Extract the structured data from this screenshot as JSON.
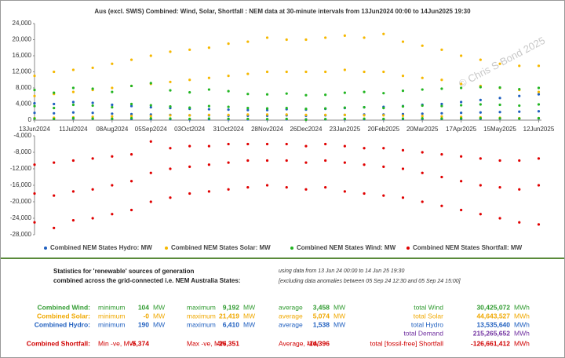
{
  "chart_data": [
    {
      "type": "scatter",
      "title": "Aus (excl. SWIS) Combined: Wind, Solar, Shortfall : NEM data at 30-minute intervals from 13Jun2024 00:00 to 14Jun2025 19:30",
      "watermark": "© Chris S Bond  2025",
      "xlim": [
        "2024-06-13",
        "2025-06-14"
      ],
      "xticks": [
        {
          "value": "2024-06-13",
          "label": "13Jun2024"
        },
        {
          "value": "2024-07-11",
          "label": "11Jul2024"
        },
        {
          "value": "2024-08-08",
          "label": "08Aug2024"
        },
        {
          "value": "2024-09-05",
          "label": "05Sep2024"
        },
        {
          "value": "2024-10-03",
          "label": "03Oct2024"
        },
        {
          "value": "2024-10-31",
          "label": "31Oct2024"
        },
        {
          "value": "2024-11-28",
          "label": "28Nov2024"
        },
        {
          "value": "2024-12-26",
          "label": "26Dec2024"
        },
        {
          "value": "2025-01-23",
          "label": "23Jan2025"
        },
        {
          "value": "2025-02-20",
          "label": "20Feb2025"
        },
        {
          "value": "2025-03-20",
          "label": "20Mar2025"
        },
        {
          "value": "2025-04-17",
          "label": "17Apr2025"
        },
        {
          "value": "2025-05-15",
          "label": "15May2025"
        },
        {
          "value": "2025-06-12",
          "label": "12Jun2025"
        }
      ],
      "ylim": [
        0,
        24000
      ],
      "yticks": [
        0,
        {
          "value": 4000,
          "label": "4,000"
        },
        {
          "value": 8000,
          "label": "8,000"
        },
        {
          "value": 12000,
          "label": "12,000"
        },
        {
          "value": 16000,
          "label": "16,000"
        },
        {
          "value": 20000,
          "label": "20,000"
        },
        {
          "value": 24000,
          "label": "24,000"
        }
      ],
      "x": [
        "2024-06-13",
        "2024-06-13",
        "2024-06-13",
        "2024-06-27",
        "2024-06-27",
        "2024-06-27",
        "2024-07-11",
        "2024-07-11",
        "2024-07-11",
        "2024-07-25",
        "2024-07-25",
        "2024-07-25",
        "2024-08-08",
        "2024-08-08",
        "2024-08-08",
        "2024-08-22",
        "2024-08-22",
        "2024-08-22",
        "2024-09-05",
        "2024-09-05",
        "2024-09-05",
        "2024-09-19",
        "2024-09-19",
        "2024-09-19",
        "2024-10-03",
        "2024-10-03",
        "2024-10-03",
        "2024-10-17",
        "2024-10-17",
        "2024-10-17",
        "2024-10-31",
        "2024-10-31",
        "2024-10-31",
        "2024-11-14",
        "2024-11-14",
        "2024-11-14",
        "2024-11-28",
        "2024-11-28",
        "2024-11-28",
        "2024-12-12",
        "2024-12-12",
        "2024-12-12",
        "2024-12-26",
        "2024-12-26",
        "2024-12-26",
        "2025-01-09",
        "2025-01-09",
        "2025-01-09",
        "2025-01-23",
        "2025-01-23",
        "2025-01-23",
        "2025-02-06",
        "2025-02-06",
        "2025-02-06",
        "2025-02-20",
        "2025-02-20",
        "2025-02-20",
        "2025-03-06",
        "2025-03-06",
        "2025-03-06",
        "2025-03-20",
        "2025-03-20",
        "2025-03-20",
        "2025-04-03",
        "2025-04-03",
        "2025-04-03",
        "2025-04-17",
        "2025-04-17",
        "2025-04-17",
        "2025-05-01",
        "2025-05-01",
        "2025-05-01",
        "2025-05-15",
        "2025-05-15",
        "2025-05-15",
        "2025-05-29",
        "2025-05-29",
        "2025-05-29",
        "2025-06-12",
        "2025-06-12",
        "2025-06-12"
      ],
      "series": [
        {
          "name": "Combined NEM States Hydro: MW",
          "color": "#1f5fbf",
          "values": [
            400,
            1800,
            4200,
            350,
            1700,
            4000,
            400,
            1900,
            4500,
            350,
            1800,
            4300,
            300,
            1600,
            3800,
            300,
            1500,
            3500,
            250,
            1400,
            3200,
            250,
            1300,
            3000,
            200,
            1200,
            2800,
            220,
            1200,
            2700,
            200,
            1100,
            2600,
            190,
            1100,
            2500,
            200,
            1100,
            2500,
            210,
            1200,
            2700,
            200,
            1100,
            2600,
            220,
            1200,
            2800,
            230,
            1300,
            3000,
            250,
            1400,
            3200,
            250,
            1400,
            3300,
            260,
            1500,
            3500,
            280,
            1600,
            3800,
            300,
            1700,
            4000,
            320,
            1800,
            4500,
            350,
            1900,
            5000,
            380,
            2000,
            5500,
            400,
            2100,
            6000,
            420,
            2200,
            6410
          ]
        },
        {
          "name": "Combined NEM States Solar: MW",
          "color": "#f5b800",
          "values": [
            500,
            6000,
            11000,
            600,
            6500,
            12000,
            700,
            7000,
            12500,
            800,
            7500,
            13000,
            900,
            8000,
            14000,
            1000,
            8500,
            15000,
            1000,
            9000,
            16000,
            1200,
            9500,
            17000,
            1200,
            10000,
            17500,
            1300,
            10500,
            18000,
            1300,
            11000,
            19000,
            1400,
            11500,
            19500,
            1400,
            12000,
            20500,
            1400,
            12000,
            20000,
            1300,
            12000,
            20000,
            1300,
            12000,
            20500,
            1300,
            12500,
            21000,
            1200,
            12000,
            20500,
            1200,
            12000,
            21419,
            1100,
            11000,
            19500,
            1000,
            10500,
            18500,
            900,
            10000,
            17500,
            800,
            9000,
            16000,
            700,
            8500,
            15000,
            600,
            8000,
            14000,
            500,
            7500,
            13500,
            500,
            7000,
            13500
          ]
        },
        {
          "name": "Combined NEM States Wind: MW",
          "color": "#22b522",
          "values": [
            400,
            3500,
            7500,
            300,
            3000,
            6800,
            500,
            3800,
            8000,
            400,
            3600,
            7800,
            350,
            3200,
            7000,
            500,
            4000,
            8500,
            450,
            3700,
            9192,
            400,
            3400,
            7400,
            300,
            3100,
            6900,
            400,
            3500,
            7600,
            350,
            3300,
            7200,
            300,
            3000,
            6500,
            250,
            2900,
            6400,
            300,
            3000,
            6600,
            104,
            2800,
            6200,
            250,
            2900,
            6300,
            300,
            3100,
            6800,
            350,
            3200,
            7000,
            300,
            3000,
            6700,
            400,
            3400,
            7300,
            450,
            3600,
            7600,
            400,
            3500,
            7800,
            450,
            3700,
            8000,
            500,
            3900,
            8200,
            450,
            3800,
            8100,
            400,
            3600,
            7700,
            500,
            3900,
            8000
          ]
        }
      ]
    },
    {
      "type": "scatter",
      "xlim": [
        "2024-06-13",
        "2025-06-14"
      ],
      "ylim": [
        -28000,
        -4000
      ],
      "yticks": [
        {
          "value": -28000,
          "label": "-28,000"
        },
        {
          "value": -24000,
          "label": "-24,000"
        },
        {
          "value": -20000,
          "label": "-20,000"
        },
        {
          "value": -16000,
          "label": "-16,000"
        },
        {
          "value": -12000,
          "label": "-12,000"
        },
        {
          "value": -8000,
          "label": "-8,000"
        },
        {
          "value": -4000,
          "label": "-4,000"
        }
      ],
      "x": [
        "2024-06-13",
        "2024-06-13",
        "2024-06-13",
        "2024-06-27",
        "2024-06-27",
        "2024-06-27",
        "2024-07-11",
        "2024-07-11",
        "2024-07-11",
        "2024-07-25",
        "2024-07-25",
        "2024-07-25",
        "2024-08-08",
        "2024-08-08",
        "2024-08-08",
        "2024-08-22",
        "2024-08-22",
        "2024-08-22",
        "2024-09-05",
        "2024-09-05",
        "2024-09-05",
        "2024-09-19",
        "2024-09-19",
        "2024-09-19",
        "2024-10-03",
        "2024-10-03",
        "2024-10-03",
        "2024-10-17",
        "2024-10-17",
        "2024-10-17",
        "2024-10-31",
        "2024-10-31",
        "2024-10-31",
        "2024-11-14",
        "2024-11-14",
        "2024-11-14",
        "2024-11-28",
        "2024-11-28",
        "2024-11-28",
        "2024-12-12",
        "2024-12-12",
        "2024-12-12",
        "2024-12-26",
        "2024-12-26",
        "2024-12-26",
        "2025-01-09",
        "2025-01-09",
        "2025-01-09",
        "2025-01-23",
        "2025-01-23",
        "2025-01-23",
        "2025-02-06",
        "2025-02-06",
        "2025-02-06",
        "2025-02-20",
        "2025-02-20",
        "2025-02-20",
        "2025-03-06",
        "2025-03-06",
        "2025-03-06",
        "2025-03-20",
        "2025-03-20",
        "2025-03-20",
        "2025-04-03",
        "2025-04-03",
        "2025-04-03",
        "2025-04-17",
        "2025-04-17",
        "2025-04-17",
        "2025-05-01",
        "2025-05-01",
        "2025-05-01",
        "2025-05-15",
        "2025-05-15",
        "2025-05-15",
        "2025-05-29",
        "2025-05-29",
        "2025-05-29",
        "2025-06-12",
        "2025-06-12",
        "2025-06-12"
      ],
      "series": [
        {
          "name": "Combined NEM States Shortfall: MW",
          "color": "#e00000",
          "values": [
            -11000,
            -18000,
            -25000,
            -10500,
            -18500,
            -26351,
            -10000,
            -17500,
            -24500,
            -9500,
            -17000,
            -24000,
            -9000,
            -16000,
            -23000,
            -8500,
            -15000,
            -22000,
            -5374,
            -13000,
            -20000,
            -7000,
            -12000,
            -19000,
            -6500,
            -11500,
            -18000,
            -6500,
            -11000,
            -17500,
            -6000,
            -10500,
            -17000,
            -6000,
            -10000,
            -16500,
            -6000,
            -10000,
            -16000,
            -6000,
            -10000,
            -16500,
            -6500,
            -10500,
            -17000,
            -6000,
            -10000,
            -16500,
            -6500,
            -10500,
            -17500,
            -7000,
            -11000,
            -18000,
            -7000,
            -11500,
            -18500,
            -7500,
            -12000,
            -19000,
            -8000,
            -13000,
            -20000,
            -8500,
            -14000,
            -21000,
            -9000,
            -15000,
            -22000,
            -9500,
            -16000,
            -23000,
            -10000,
            -16500,
            -24000,
            -10000,
            -17000,
            -25000,
            -9500,
            -16000,
            -25500
          ]
        }
      ]
    }
  ],
  "stats": {
    "heading": [
      "Statistics for 'renewable' sources of generation",
      "combined across the grid-connected i.e. NEM Australia States:"
    ],
    "note": [
      "using data from 13 Jun 24 00:00 to 14 Jun 25 19:30",
      "[excluding data anomalies between 05 Sep 24 12:30 and 05 Sep 24 15:00]"
    ],
    "rows": [
      {
        "color": "#2e9a2e",
        "cells": [
          "Combined Wind:",
          "minimum",
          "104",
          "MW",
          "maximum",
          "9,192",
          "MW",
          "average",
          "3,458",
          "MW",
          "total Wind",
          "30,425,072",
          "MWh"
        ]
      },
      {
        "color": "#f0a800",
        "cells": [
          "Combined Solar:",
          "minimum",
          "-0",
          "MW",
          "maximum",
          "21,419",
          "MW",
          "average",
          "5,074",
          "MW",
          "total Solar",
          "44,643,527",
          "MWh"
        ]
      },
      {
        "color": "#1f5fbf",
        "cells": [
          "Combined Hydro:",
          "minimum",
          "190",
          "MW",
          "maximum",
          "6,410",
          "MW",
          "average",
          "1,538",
          "MW",
          "total Hydro",
          "13,535,640",
          "MWh"
        ]
      },
      {
        "color": "#7030a0",
        "cells": [
          "total Demand",
          "215,265,652",
          "MWh"
        ]
      },
      {
        "color": "#d00000",
        "cells": [
          "Combined Shortfall:",
          "Min -ve, MW",
          "-5,374",
          "Max -ve, MW",
          "-26,351",
          "Average, MW",
          "-14,396",
          "total [fossil-free] Shortfall",
          "-126,661,412",
          "MWh"
        ]
      }
    ]
  }
}
